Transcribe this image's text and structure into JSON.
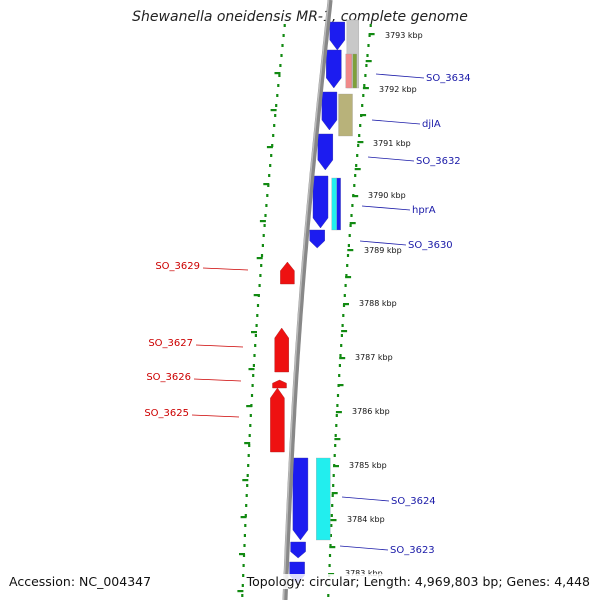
{
  "title": "Shewanella oneidensis MR-1, complete genome",
  "footer": {
    "accession": "Accession: NC_004347",
    "summary": "Topology: circular; Length: 4,969,803 bp; Genes: 4,448"
  },
  "colors": {
    "forward_gene": "#1c1cf0",
    "reverse_gene": "#ee1111",
    "cyan_feature": "#22eeee",
    "grey_feature": "#c8c8c8",
    "olive_feature": "#b8b27a",
    "pink_feature": "#f08a8a",
    "green_feature": "#7fa03a",
    "backbone": "#888888",
    "tick": "#128a12",
    "label_blue": "#1a1aa8",
    "label_red": "#cc0000"
  },
  "kbp_ticks": [
    "3793 kbp",
    "3792 kbp",
    "3791 kbp",
    "3790 kbp",
    "3789 kbp",
    "3788 kbp",
    "3787 kbp",
    "3786 kbp",
    "3785 kbp",
    "3784 kbp",
    "3783 kbp"
  ],
  "forward_labels": [
    "SO_3634",
    "djlA",
    "SO_3632",
    "hprA",
    "SO_3630",
    "SO_3624",
    "SO_3623"
  ],
  "reverse_labels": [
    "SO_3629",
    "SO_3627",
    "SO_3626",
    "SO_3625"
  ]
}
